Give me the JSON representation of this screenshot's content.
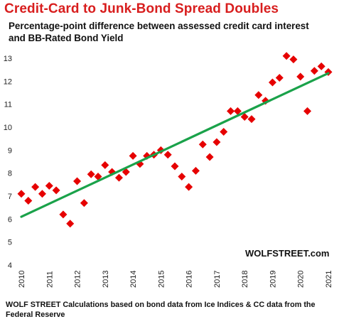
{
  "chart_data": {
    "type": "scatter",
    "title": "Credit-Card to Junk-Bond Spread Doubles",
    "subtitle": "Percentage-point difference between assessed credit card interest and BB-Rated Bond Yield",
    "watermark": "WOLFSTREET.com",
    "footer": "WOLF STREET Calculations based on bond data from Ice Indices & CC data from the Federal Reserve",
    "xlabel": "",
    "ylabel": "",
    "xlim": [
      2010,
      2021
    ],
    "ylim": [
      4,
      13
    ],
    "xticks": [
      "2010",
      "2011",
      "2012",
      "2013",
      "2014",
      "2015",
      "2016",
      "2017",
      "2018",
      "2019",
      "2020",
      "2021"
    ],
    "yticks": [
      "4",
      "5",
      "6",
      "7",
      "8",
      "9",
      "10",
      "11",
      "12",
      "13"
    ],
    "grid": false,
    "marker_color": "#e60000",
    "trend_color": "#1aa24a",
    "series": [
      {
        "marker": "diamond",
        "points": [
          [
            2010.0,
            7.1
          ],
          [
            2010.25,
            6.8
          ],
          [
            2010.5,
            7.4
          ],
          [
            2010.75,
            7.1
          ],
          [
            2011.0,
            7.45
          ],
          [
            2011.25,
            7.25
          ],
          [
            2011.5,
            6.2
          ],
          [
            2011.75,
            5.8
          ],
          [
            2012.0,
            7.65
          ],
          [
            2012.25,
            6.7
          ],
          [
            2012.5,
            7.95
          ],
          [
            2012.75,
            7.85
          ],
          [
            2013.0,
            8.35
          ],
          [
            2013.25,
            8.05
          ],
          [
            2013.5,
            7.8
          ],
          [
            2013.75,
            8.05
          ],
          [
            2014.0,
            8.75
          ],
          [
            2014.25,
            8.4
          ],
          [
            2014.5,
            8.75
          ],
          [
            2014.75,
            8.8
          ],
          [
            2015.0,
            9.0
          ],
          [
            2015.25,
            8.8
          ],
          [
            2015.5,
            8.3
          ],
          [
            2015.75,
            7.85
          ],
          [
            2016.0,
            7.4
          ],
          [
            2016.25,
            8.1
          ],
          [
            2016.5,
            9.25
          ],
          [
            2016.75,
            8.7
          ],
          [
            2017.0,
            9.35
          ],
          [
            2017.25,
            9.8
          ],
          [
            2017.5,
            10.7
          ],
          [
            2017.75,
            10.7
          ],
          [
            2018.0,
            10.45
          ],
          [
            2018.25,
            10.35
          ],
          [
            2018.5,
            11.4
          ],
          [
            2018.75,
            11.15
          ],
          [
            2019.0,
            11.95
          ],
          [
            2019.25,
            12.15
          ],
          [
            2019.5,
            13.1
          ],
          [
            2019.75,
            12.95
          ],
          [
            2020.0,
            12.2
          ],
          [
            2020.25,
            10.7
          ],
          [
            2020.5,
            12.45
          ],
          [
            2020.75,
            12.65
          ],
          [
            2021.0,
            12.4
          ]
        ]
      }
    ],
    "trendline": {
      "x": [
        2010,
        2021
      ],
      "y": [
        6.1,
        12.35
      ]
    }
  }
}
